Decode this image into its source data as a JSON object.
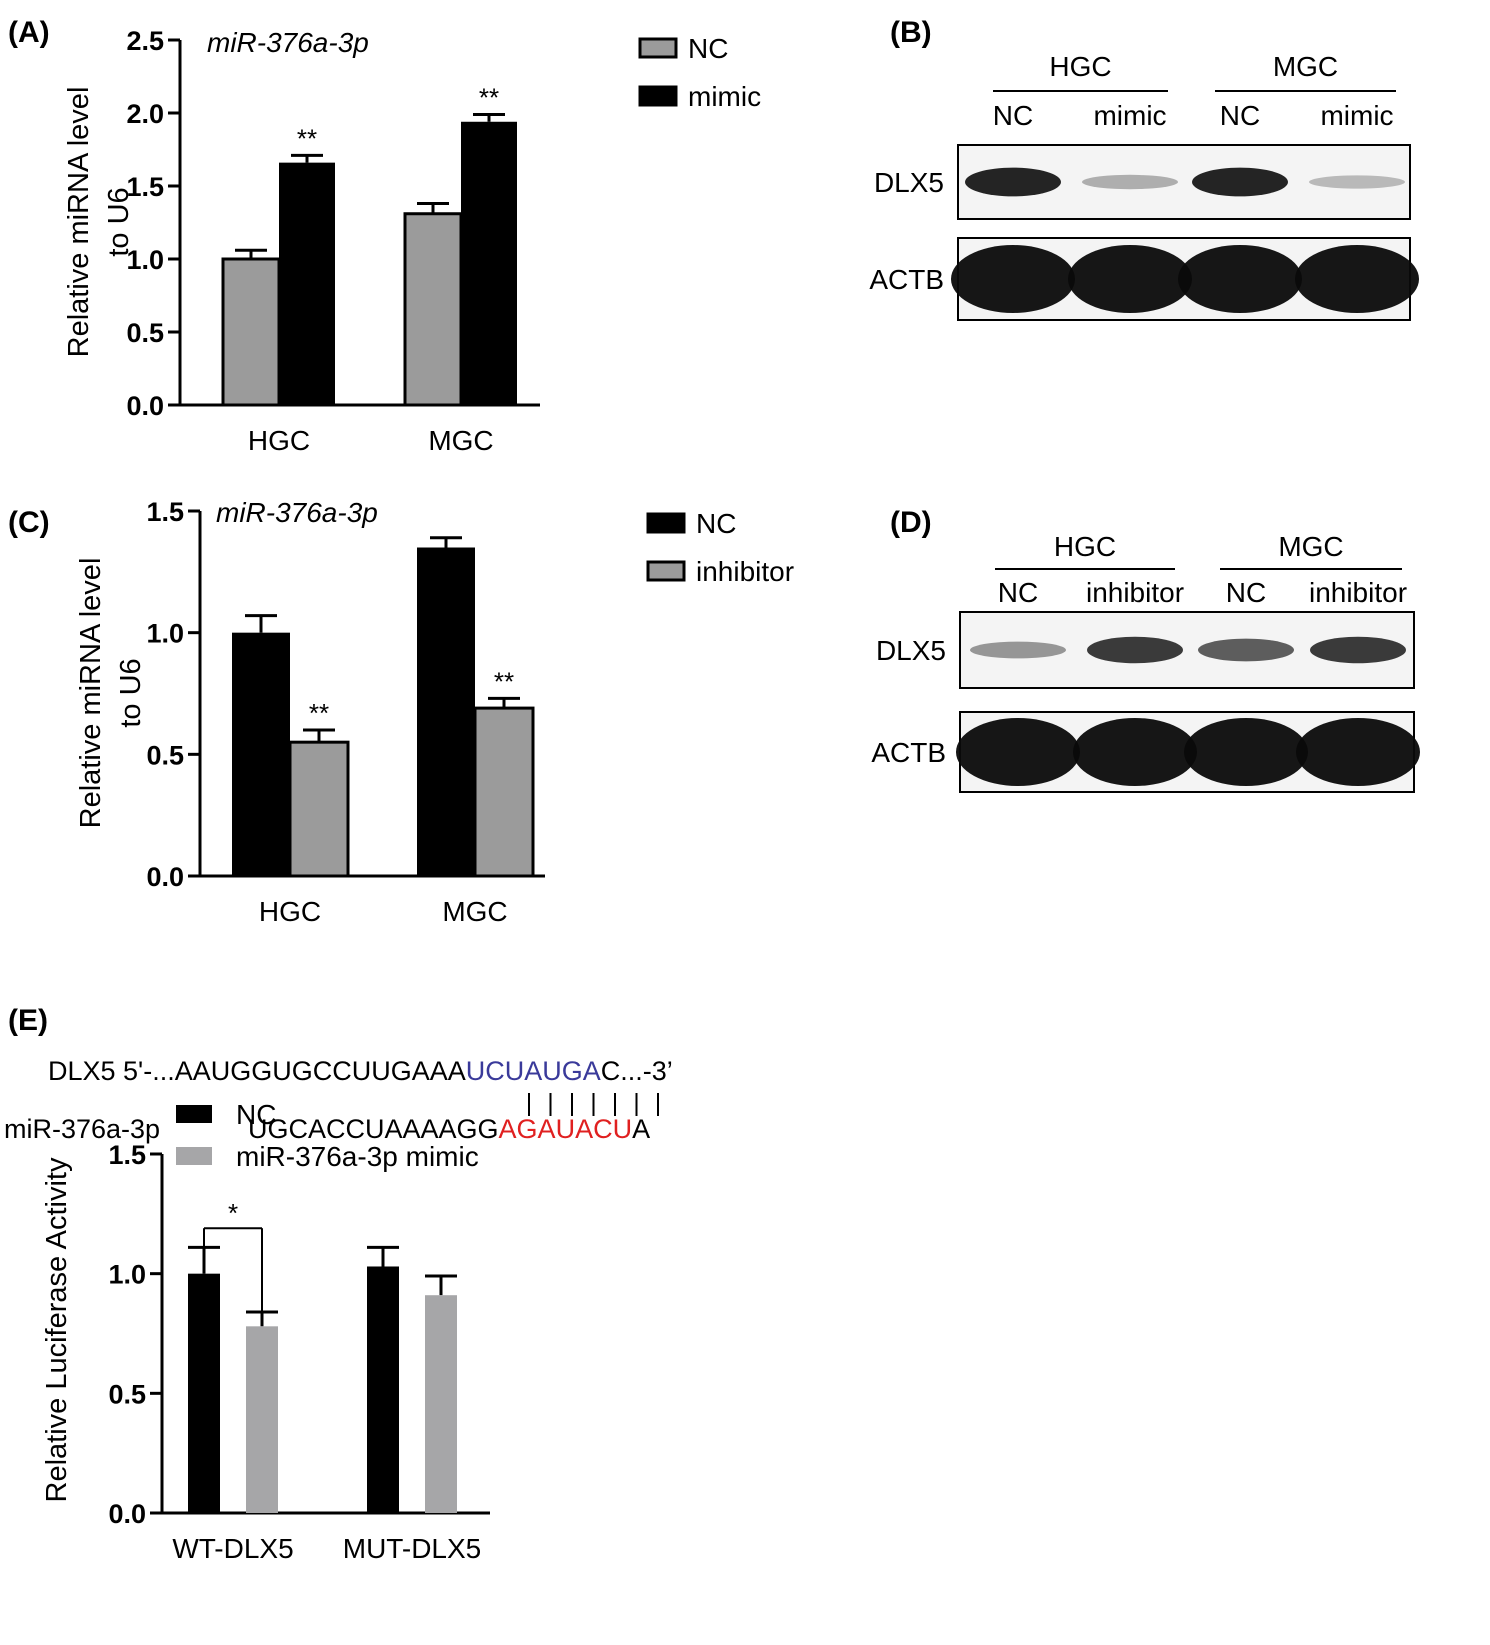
{
  "panels": {
    "A": "(A)",
    "B": "(B)",
    "C": "(C)",
    "D": "(D)",
    "E": "(E)"
  },
  "colors": {
    "black": "#000000",
    "gray_bar": "#9b9b9b",
    "gray_bar_e": "#a6a6a8",
    "seed_blue": "#3a3a9a",
    "seed_red": "#e02020"
  },
  "chart_data": [
    {
      "id": "A",
      "type": "bar",
      "title": "miR-376a-3p",
      "ylabel": [
        "Relative miRNA level",
        "to U6"
      ],
      "xlabel": "",
      "categories": [
        "HGC",
        "MGC"
      ],
      "ylim": [
        0,
        2.5
      ],
      "yticks": [
        "0.0",
        "0.5",
        "1.0",
        "1.5",
        "2.0",
        "2.5"
      ],
      "legend_position": "right",
      "series": [
        {
          "name": "NC",
          "values": [
            1.0,
            1.31
          ],
          "errors": [
            0.06,
            0.07
          ],
          "color": "#9b9b9b",
          "sig": [
            "",
            ""
          ]
        },
        {
          "name": "mimic",
          "values": [
            1.66,
            1.94
          ],
          "errors": [
            0.05,
            0.05
          ],
          "color": "#000000",
          "sig": [
            "**",
            "**"
          ]
        }
      ]
    },
    {
      "id": "C",
      "type": "bar",
      "title": "miR-376a-3p",
      "ylabel": [
        "Relative miRNA level",
        "to U6"
      ],
      "xlabel": "",
      "categories": [
        "HGC",
        "MGC"
      ],
      "ylim": [
        0,
        1.5
      ],
      "yticks": [
        "0.0",
        "0.5",
        "1.0",
        "1.5"
      ],
      "legend_position": "right",
      "series": [
        {
          "name": "NC",
          "values": [
            1.0,
            1.35
          ],
          "errors": [
            0.07,
            0.04
          ],
          "color": "#000000",
          "sig": [
            "",
            ""
          ]
        },
        {
          "name": "inhibitor",
          "values": [
            0.55,
            0.69
          ],
          "errors": [
            0.05,
            0.04
          ],
          "color": "#9b9b9b",
          "sig": [
            "**",
            "**"
          ]
        }
      ]
    },
    {
      "id": "E",
      "type": "bar",
      "title": "",
      "ylabel": [
        "Relative Luciferase Activity"
      ],
      "xlabel": "",
      "categories": [
        "WT-DLX5",
        "MUT-DLX5"
      ],
      "ylim": [
        0,
        1.5
      ],
      "yticks": [
        "0.0",
        "0.5",
        "1.0",
        "1.5"
      ],
      "legend_position": "top-left",
      "series": [
        {
          "name": "NC",
          "values": [
            1.0,
            1.03
          ],
          "errors": [
            0.11,
            0.08
          ],
          "color": "#000000"
        },
        {
          "name": "miR-376a-3p mimic",
          "values": [
            0.78,
            0.91
          ],
          "errors": [
            0.06,
            0.08
          ],
          "color": "#a6a6a8"
        }
      ],
      "comparison": {
        "group": 0,
        "label": "*"
      }
    }
  ],
  "blots": [
    {
      "id": "B",
      "groups": [
        "HGC",
        "MGC"
      ],
      "lanes": [
        "NC",
        "mimic",
        "NC",
        "mimic"
      ],
      "rows": [
        {
          "label": "DLX5",
          "intensity": [
            0.95,
            0.35,
            0.95,
            0.3
          ]
        },
        {
          "label": "ACTB",
          "intensity": [
            1.0,
            1.0,
            1.0,
            1.0
          ]
        }
      ]
    },
    {
      "id": "D",
      "groups": [
        "HGC",
        "MGC"
      ],
      "lanes": [
        "NC",
        "inhibitor",
        "NC",
        "inhibitor"
      ],
      "rows": [
        {
          "label": "DLX5",
          "intensity": [
            0.45,
            0.85,
            0.7,
            0.85
          ]
        },
        {
          "label": "ACTB",
          "intensity": [
            1.0,
            1.0,
            1.0,
            1.0
          ]
        }
      ]
    }
  ],
  "sequence": {
    "target_prefix": "DLX5 5'-...AAUGGUGCCUUGAAA",
    "target_seed": "UCUAUGA",
    "target_suffix": "C...-3’",
    "mirna_label": "miR-376a-3p",
    "mirna_prefix": "UGCACCUAAAAGG",
    "mirna_seed": "AGAUACU",
    "mirna_suffix": "A",
    "pair_count": 7
  }
}
